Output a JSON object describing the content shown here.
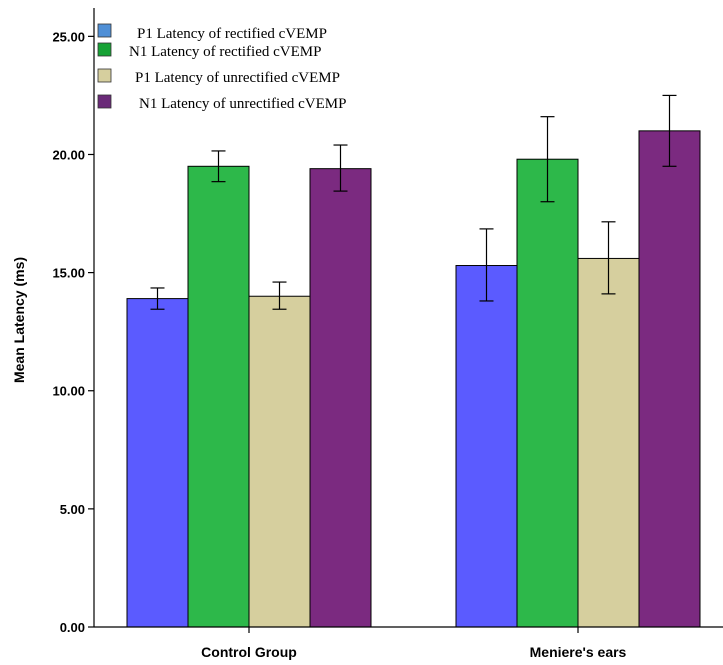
{
  "chart_data": {
    "type": "bar",
    "title": "",
    "xlabel": "",
    "ylabel": "Mean Latency (ms)",
    "ylim": [
      0,
      26.2
    ],
    "yticks": [
      "0.00",
      "5.00",
      "10.00",
      "15.00",
      "20.00",
      "25.00"
    ],
    "categories": [
      "Control Group",
      "Meniere's ears"
    ],
    "legend_position": "top-left",
    "grid": false,
    "series": [
      {
        "name": "P1 Latency of rectified cVEMP",
        "color": "#5b5bff",
        "legend_color": "#4f8fd6",
        "values": [
          13.9,
          15.3
        ],
        "error_low": [
          13.45,
          13.8
        ],
        "error_high": [
          14.35,
          16.85
        ]
      },
      {
        "name": "N1 Latency of rectified cVEMP",
        "color": "#2db84a",
        "legend_color": "#17a235",
        "values": [
          19.5,
          19.8
        ],
        "error_low": [
          18.85,
          18.0
        ],
        "error_high": [
          20.15,
          21.6
        ]
      },
      {
        "name": "P1 Latency of unrectified cVEMP",
        "color": "#d6cf9e",
        "legend_color": "#d6cf9e",
        "values": [
          14.0,
          15.6
        ],
        "error_low": [
          13.45,
          14.1
        ],
        "error_high": [
          14.6,
          17.15
        ]
      },
      {
        "name": "N1 Latency of unrectified cVEMP",
        "color": "#7b2a80",
        "legend_color": "#6a2a78",
        "values": [
          19.4,
          21.0
        ],
        "error_low": [
          18.45,
          19.5
        ],
        "error_high": [
          20.4,
          22.5
        ]
      }
    ]
  }
}
